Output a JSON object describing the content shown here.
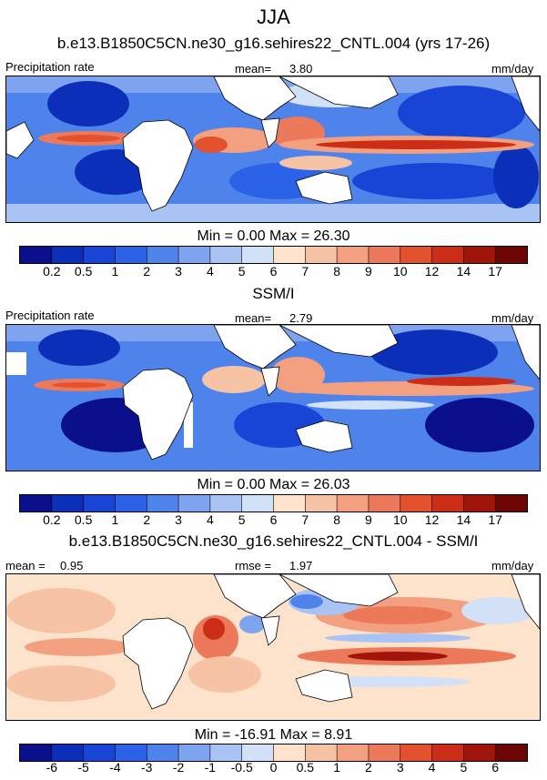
{
  "title": "JJA",
  "panels": [
    {
      "id": "model",
      "title": "b.e13.B1850C5CN.ne30_g16.sehires22_CNTL.004 (yrs 17-26)",
      "left_label": "Precipitation rate",
      "center_label": "mean=",
      "center_value": "3.80",
      "right_label": "mm/day",
      "stats_text": "Min =   0.00 Max =  26.30",
      "colorbar": "precip"
    },
    {
      "id": "obs",
      "title": "SSM/I",
      "left_label": "Precipitation rate",
      "center_label": "mean=",
      "center_value": "2.79",
      "right_label": "mm/day",
      "stats_text": "Min =   0.00 Max =  26.03",
      "colorbar": "precip"
    },
    {
      "id": "diff",
      "title": "b.e13.B1850C5CN.ne30_g16.sehires22_CNTL.004 - SSM/I",
      "left_label": "mean =",
      "left_value": "0.95",
      "center_label": "rmse =",
      "center_value": "1.97",
      "right_label": "mm/day",
      "stats_text": "Min = -16.91 Max =   8.91",
      "colorbar": "diff"
    }
  ],
  "colorbars": {
    "precip": {
      "labels": [
        "0.2",
        "0.5",
        "1",
        "2",
        "3",
        "4",
        "5",
        "6",
        "7",
        "8",
        "9",
        "10",
        "12",
        "14",
        "17"
      ],
      "colors": [
        "#0a0f8c",
        "#0b2fb8",
        "#1845d6",
        "#2b62e8",
        "#4f83ec",
        "#7ea4f0",
        "#a9c3f5",
        "#d3e1f8",
        "#fde3cc",
        "#f7c3a5",
        "#f2a07f",
        "#ec7a5a",
        "#e4512f",
        "#cc2d16",
        "#a01509",
        "#6e0505"
      ]
    },
    "diff": {
      "labels": [
        "-6",
        "-5",
        "-4",
        "-3",
        "-2",
        "-1",
        "-0.5",
        "0",
        "0.5",
        "1",
        "2",
        "3",
        "4",
        "5",
        "6"
      ],
      "colors": [
        "#0a0f8c",
        "#0b2fb8",
        "#1845d6",
        "#2b62e8",
        "#4f83ec",
        "#7ea4f0",
        "#a9c3f5",
        "#d3e1f8",
        "#fde3cc",
        "#f7c3a5",
        "#f2a07f",
        "#ec7a5a",
        "#e4512f",
        "#cc2d16",
        "#a01509",
        "#6e0505"
      ]
    }
  },
  "chart_data": [
    {
      "type": "heatmap",
      "title": "b.e13.B1850C5CN.ne30_g16.sehires22_CNTL.004 (yrs 17-26)",
      "quantity": "Precipitation rate",
      "units": "mm/day",
      "mean": 3.8,
      "min": 0.0,
      "max": 26.3,
      "contour_levels": [
        0.2,
        0.5,
        1,
        2,
        3,
        4,
        5,
        6,
        7,
        8,
        9,
        10,
        12,
        14,
        17
      ]
    },
    {
      "type": "heatmap",
      "title": "SSM/I",
      "quantity": "Precipitation rate",
      "units": "mm/day",
      "mean": 2.79,
      "min": 0.0,
      "max": 26.03,
      "contour_levels": [
        0.2,
        0.5,
        1,
        2,
        3,
        4,
        5,
        6,
        7,
        8,
        9,
        10,
        12,
        14,
        17
      ]
    },
    {
      "type": "heatmap",
      "title": "b.e13.B1850C5CN.ne30_g16.sehires22_CNTL.004 - SSM/I",
      "units": "mm/day",
      "mean": 0.95,
      "rmse": 1.97,
      "min": -16.91,
      "max": 8.91,
      "contour_levels": [
        -6,
        -5,
        -4,
        -3,
        -2,
        -1,
        -0.5,
        0,
        0.5,
        1,
        2,
        3,
        4,
        5,
        6
      ]
    }
  ]
}
